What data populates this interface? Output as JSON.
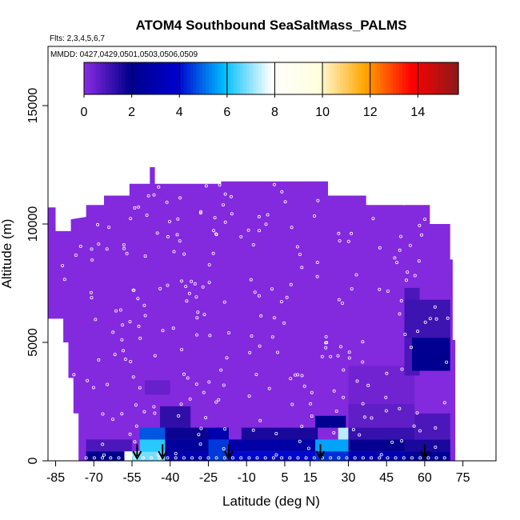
{
  "chart_data": {
    "type": "heatmap",
    "title": "ATOM4 Southbound SeaSaltMass_PALMS",
    "subtitle_flights": "Flts: 2,3,4,5,6,7",
    "subtitle_dates": "MMDD: 0427,0429,0501,0503,0506,0509",
    "xlabel": "Latitude (deg N)",
    "ylabel": "Altitude (m)",
    "xlim": [
      -88,
      88
    ],
    "ylim": [
      0,
      17500
    ],
    "xticks": [
      -85,
      -70,
      -55,
      -40,
      -25,
      -10,
      5,
      15,
      30,
      45,
      60,
      75
    ],
    "yticks": [
      0,
      5000,
      10000,
      15000
    ],
    "colorbar": {
      "ticks": [
        0,
        2,
        4,
        6,
        8,
        10,
        12,
        14
      ],
      "range": [
        0,
        15.7
      ],
      "colors": [
        "#8a2be2",
        "#00008b",
        "#0000cd",
        "#00bfff",
        "#ffffff",
        "#ffffe0",
        "#ffa500",
        "#ff0000",
        "#8b1a1a"
      ]
    },
    "background_value": 0.1,
    "profile_latitudes": [
      -53,
      -43,
      -17,
      19,
      60
    ],
    "cells": [
      {
        "lat": [
          -73,
          -55
        ],
        "alt": [
          0,
          400
        ],
        "value": 2.0
      },
      {
        "lat": [
          -73,
          -55
        ],
        "alt": [
          400,
          900
        ],
        "value": 0.9
      },
      {
        "lat": [
          -58,
          -52
        ],
        "alt": [
          0,
          400
        ],
        "value": 8.0
      },
      {
        "lat": [
          -55,
          -42
        ],
        "alt": [
          0,
          400
        ],
        "value": 6.8
      },
      {
        "lat": [
          -52,
          -42
        ],
        "alt": [
          400,
          900
        ],
        "value": 6.2
      },
      {
        "lat": [
          -52,
          -42
        ],
        "alt": [
          900,
          1400
        ],
        "value": 4.8
      },
      {
        "lat": [
          -42,
          -25
        ],
        "alt": [
          0,
          400
        ],
        "value": 3.0
      },
      {
        "lat": [
          -42,
          -25
        ],
        "alt": [
          400,
          900
        ],
        "value": 2.4
      },
      {
        "lat": [
          -42,
          -25
        ],
        "alt": [
          900,
          1400
        ],
        "value": 1.8
      },
      {
        "lat": [
          -25,
          -17
        ],
        "alt": [
          0,
          900
        ],
        "value": 4.5
      },
      {
        "lat": [
          -25,
          -17
        ],
        "alt": [
          900,
          1400
        ],
        "value": 3.0
      },
      {
        "lat": [
          -17,
          18
        ],
        "alt": [
          0,
          400
        ],
        "value": 4.0
      },
      {
        "lat": [
          -17,
          18
        ],
        "alt": [
          400,
          900
        ],
        "value": 2.8
      },
      {
        "lat": [
          -12,
          18
        ],
        "alt": [
          900,
          1400
        ],
        "value": 1.6
      },
      {
        "lat": [
          -44,
          -32
        ],
        "alt": [
          1400,
          2300
        ],
        "value": 1.3
      },
      {
        "lat": [
          -50,
          -40
        ],
        "alt": [
          2800,
          3400
        ],
        "value": 0.5
      },
      {
        "lat": [
          17,
          30
        ],
        "alt": [
          0,
          400
        ],
        "value": 4.4
      },
      {
        "lat": [
          17,
          30
        ],
        "alt": [
          400,
          900
        ],
        "value": 5.6
      },
      {
        "lat": [
          26,
          30
        ],
        "alt": [
          900,
          1400
        ],
        "value": 7.3
      },
      {
        "lat": [
          17,
          29
        ],
        "alt": [
          1400,
          1900
        ],
        "value": 2.1
      },
      {
        "lat": [
          30,
          52
        ],
        "alt": [
          0,
          400
        ],
        "value": 3.2
      },
      {
        "lat": [
          30,
          52
        ],
        "alt": [
          400,
          900
        ],
        "value": 1.9
      },
      {
        "lat": [
          30,
          56
        ],
        "alt": [
          900,
          1400
        ],
        "value": 1.2
      },
      {
        "lat": [
          30,
          56
        ],
        "alt": [
          1400,
          2400
        ],
        "value": 0.6
      },
      {
        "lat": [
          30,
          56
        ],
        "alt": [
          2400,
          4000
        ],
        "value": 0.35
      },
      {
        "lat": [
          52,
          70
        ],
        "alt": [
          0,
          400
        ],
        "value": 2.4
      },
      {
        "lat": [
          52,
          70
        ],
        "alt": [
          400,
          900
        ],
        "value": 1.6
      },
      {
        "lat": [
          56,
          70
        ],
        "alt": [
          900,
          2000
        ],
        "value": 0.9
      },
      {
        "lat": [
          52,
          58
        ],
        "alt": [
          3600,
          7300
        ],
        "value": 0.9
      },
      {
        "lat": [
          55,
          70
        ],
        "alt": [
          3800,
          5200
        ],
        "value": 2.1
      },
      {
        "lat": [
          52,
          70
        ],
        "alt": [
          5200,
          6800
        ],
        "value": 1.1
      }
    ]
  }
}
